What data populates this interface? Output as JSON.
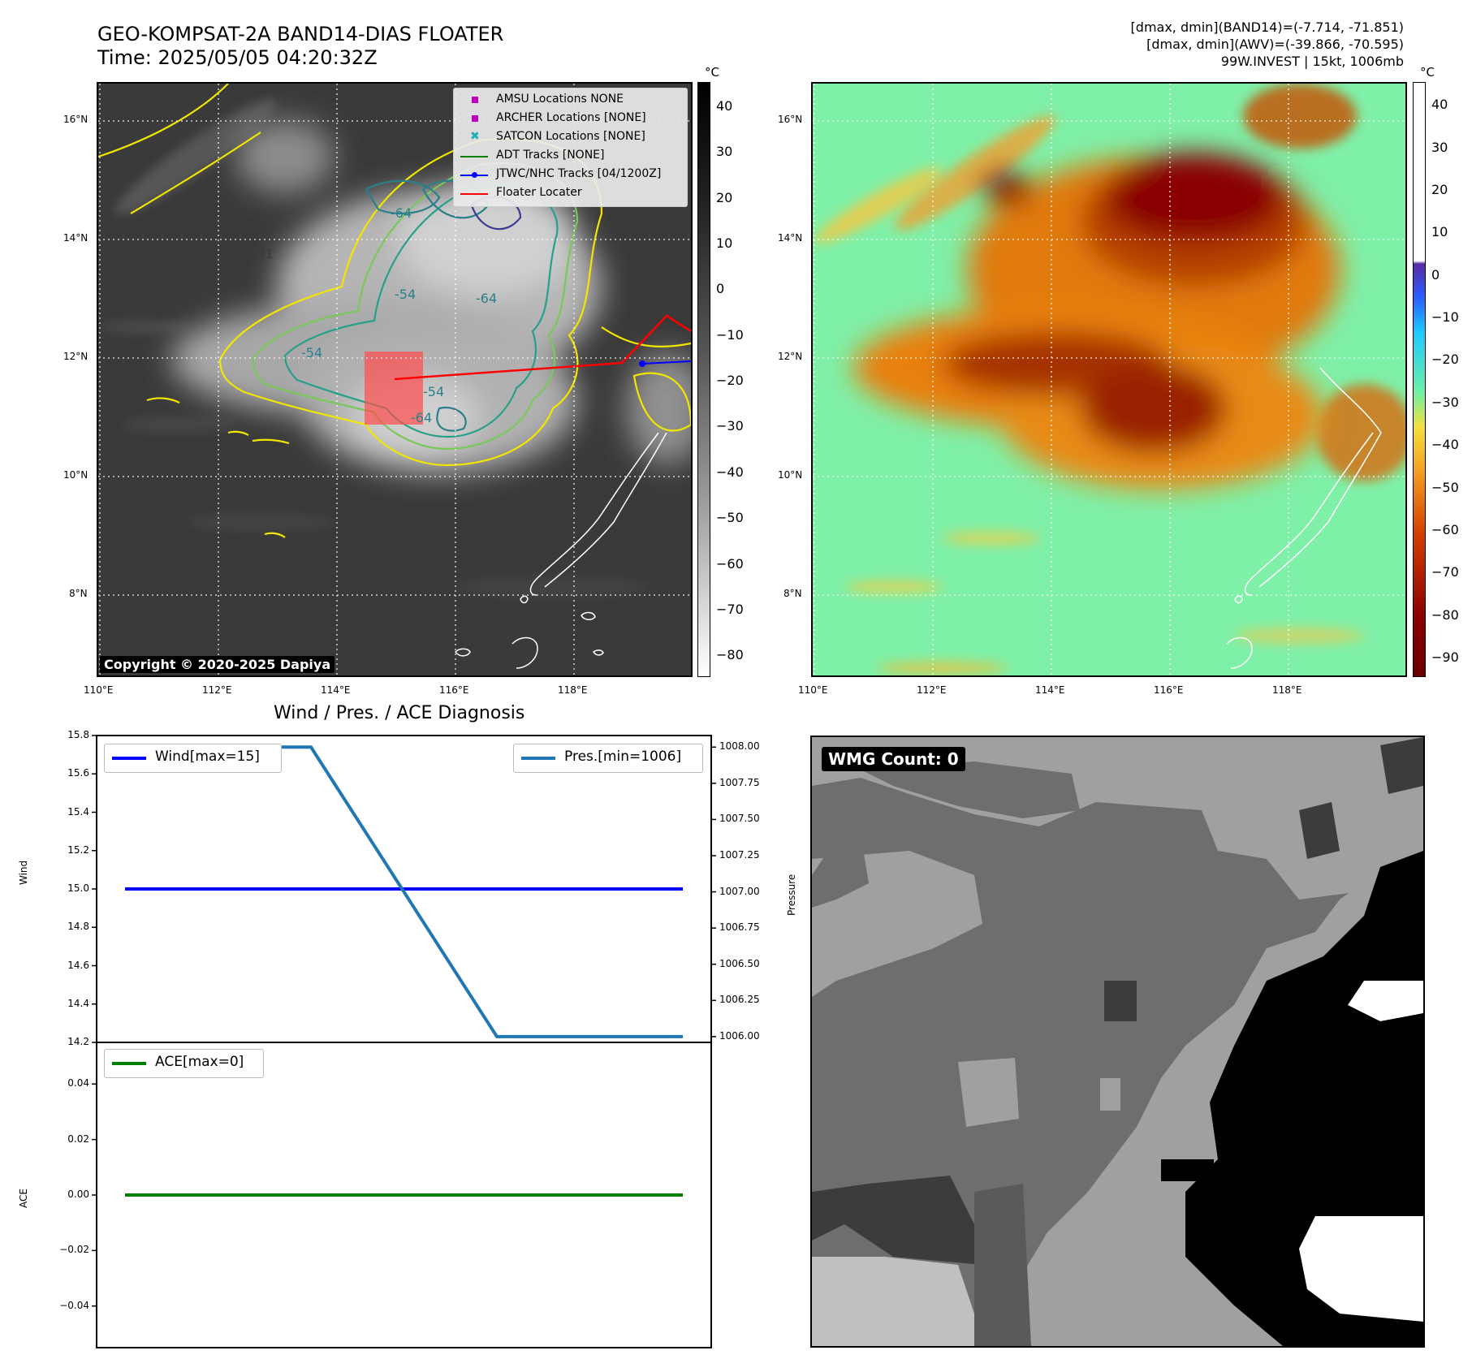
{
  "header": {
    "title_line1": "GEO-KOMPSAT-2A BAND14-DIAS FLOATER",
    "title_line2": "Time: 2025/05/05 04:20:32Z",
    "right_line1": "[dmax, dmin](BAND14)=(-7.714, -71.851)",
    "right_line2": "[dmax, dmin](AWV)=(-39.866, -70.595)",
    "right_line3": "99W.INVEST | 15kt, 1006mb"
  },
  "map_common": {
    "lat_ticks": [
      "16°N",
      "14°N",
      "12°N",
      "10°N",
      "8°N"
    ],
    "lon_ticks": [
      "110°E",
      "112°E",
      "114°E",
      "116°E",
      "118°E"
    ]
  },
  "map_left": {
    "legend": [
      {
        "label": "AMSU Locations NONE",
        "marker": "square",
        "color": "#c000c0"
      },
      {
        "label": "ARCHER Locations [NONE]",
        "marker": "square",
        "color": "#c000c0"
      },
      {
        "label": "SATCON Locations [NONE]",
        "marker": "x",
        "color": "#20b0b0"
      },
      {
        "label": "ADT Tracks [NONE]",
        "marker": "line",
        "color": "#008000"
      },
      {
        "label": "JTWC/NHC Tracks [04/1200Z]",
        "marker": "line-dot",
        "color": "#0000ff"
      },
      {
        "label": "Floater Locater",
        "marker": "line",
        "color": "#ff0000"
      }
    ],
    "contour_labels": [
      "-64",
      "-31",
      "-54",
      "-64",
      "-54",
      "-54",
      "-64"
    ],
    "copyright": "Copyright © 2020-2025 Dapiya",
    "colorbar_unit": "°C",
    "colorbar_ticks": [
      "40",
      "30",
      "20",
      "10",
      "0",
      "−10",
      "−20",
      "−30",
      "−40",
      "−50",
      "−60",
      "−70",
      "−80"
    ]
  },
  "map_right": {
    "colorbar_unit": "°C",
    "colorbar_ticks": [
      "40",
      "30",
      "20",
      "10",
      "0",
      "−10",
      "−20",
      "−30",
      "−40",
      "−50",
      "−60",
      "−70",
      "−80",
      "−90"
    ]
  },
  "diag": {
    "title": "Wind / Pres. / ACE Diagnosis",
    "wind_ylabel": "Wind",
    "pres_ylabel": "Pressure",
    "ace_ylabel": "ACE",
    "wind_legend": "Wind[max=15]",
    "pres_legend": "Pres.[min=1006]",
    "ace_legend": "ACE[max=0]",
    "wind_ticks": [
      "15.8",
      "15.6",
      "15.4",
      "15.2",
      "15.0",
      "14.8",
      "14.6",
      "14.4",
      "14.2"
    ],
    "pres_ticks": [
      "1008.00",
      "1007.75",
      "1007.50",
      "1007.25",
      "1007.00",
      "1006.75",
      "1006.50",
      "1006.25",
      "1006.00"
    ],
    "ace_ticks": [
      "0.04",
      "0.02",
      "0.00",
      "−0.02",
      "−0.04"
    ]
  },
  "wmg": {
    "label": "WMG Count: 0"
  },
  "chart_data": [
    {
      "type": "line",
      "title": "Wind / Pres. / ACE Diagnosis",
      "panel": "wind-pressure",
      "x": [
        0,
        1,
        2,
        3
      ],
      "series": [
        {
          "name": "Wind[max=15]",
          "axis": "left",
          "color": "#0000ff",
          "values": [
            15,
            15,
            15,
            15
          ]
        },
        {
          "name": "Pres.[min=1006]",
          "axis": "right",
          "color": "#1f77b4",
          "values": [
            1008,
            1008,
            1006,
            1006
          ]
        }
      ],
      "ylabel": "Wind",
      "ylabel_right": "Pressure",
      "ylim": [
        14.2,
        15.8
      ],
      "ylim_right": [
        1005.96,
        1008.08
      ],
      "grid": false
    },
    {
      "type": "line",
      "panel": "ace",
      "x": [
        0,
        1,
        2,
        3
      ],
      "series": [
        {
          "name": "ACE[max=0]",
          "color": "#008000",
          "values": [
            0,
            0,
            0,
            0
          ]
        }
      ],
      "ylabel": "ACE",
      "ylim": [
        -0.055,
        0.055
      ],
      "grid": false
    }
  ]
}
